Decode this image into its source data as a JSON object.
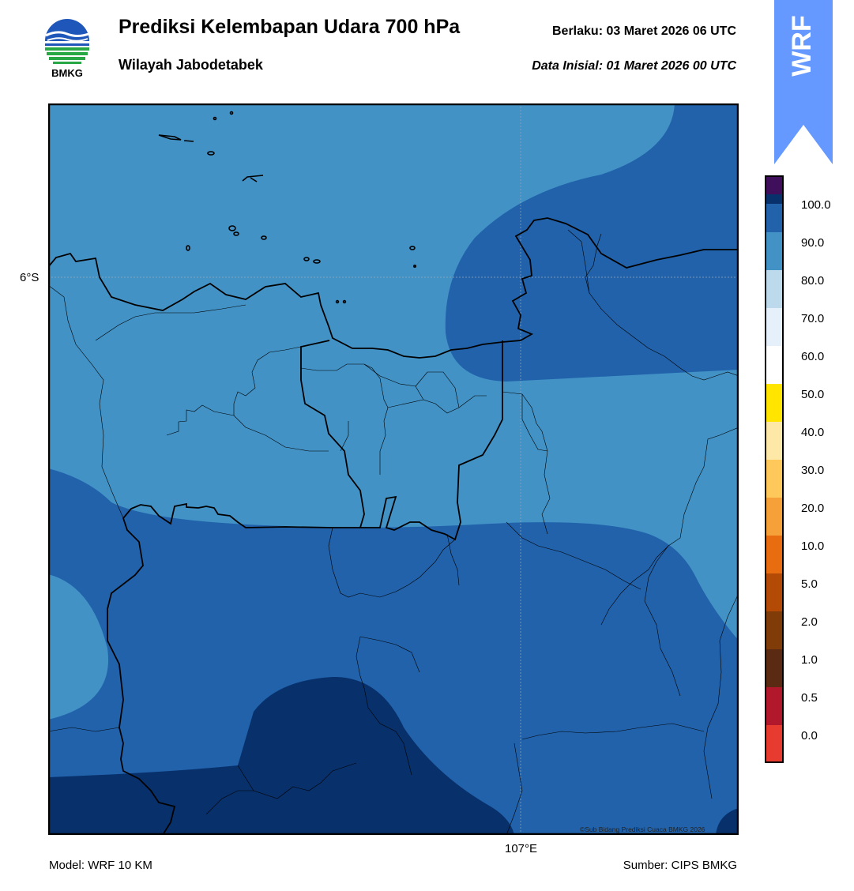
{
  "header": {
    "title": "Prediksi Kelembapan Udara 700 hPa",
    "subtitle": "Wilayah Jabodetabek",
    "valid": "Berlaku:  03 Maret 2026 06 UTC",
    "initial": "Data Inisial:  01 Maret 2026 00 UTC",
    "logo_text": "BMKG",
    "wrf_label": "WRF"
  },
  "map": {
    "lat_label": "6°S",
    "lon_label": "107°E",
    "copyright": "©Sub Bidang Prediksi Cuaca BMKG 2026",
    "fill_colors": {
      "band_70_80": "#4292c6",
      "band_80_90": "#2162ab",
      "band_90_100": "#08306b"
    }
  },
  "colorbar": {
    "levels": [
      "0.0",
      "0.5",
      "1.0",
      "2.0",
      "5.0",
      "10.0",
      "20.0",
      "30.0",
      "40.0",
      "50.0",
      "60.0",
      "70.0",
      "80.0",
      "90.0",
      "100.0"
    ],
    "colors": [
      "#e63b2e",
      "#b2182b",
      "#5a2a12",
      "#7f3b08",
      "#b34a06",
      "#e86c10",
      "#f6a03a",
      "#fec85a",
      "#fee8a8",
      "#ffe500",
      "#ffffff",
      "#e6f0fa",
      "#bcdaeb",
      "#4292c6",
      "#2162ab",
      "#08306b",
      "#3f0f5c"
    ]
  },
  "footer": {
    "model": "Model: WRF 10 KM",
    "source": "Sumber: CIPS BMKG"
  }
}
